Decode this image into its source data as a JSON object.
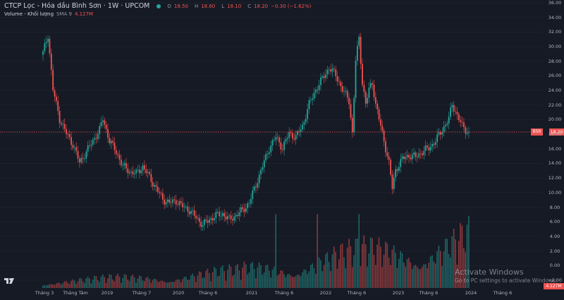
{
  "header": {
    "title": "CTCP Lọc - Hóa dầu Bình Sơn · 1W · UPCOM",
    "open_label": "O",
    "open": "18.50",
    "high_label": "H",
    "high": "18.60",
    "low_label": "L",
    "low": "18.10",
    "close_label": "C",
    "close": "18.20",
    "change": "−0.30 (−1.62%)"
  },
  "volume_legend": {
    "name": "Volume - Khối lượng",
    "sma": "SMA 9",
    "value": "4.127M"
  },
  "price_tag": {
    "symbol": "BSR",
    "price": "18.20"
  },
  "volume_tag": "4.127M",
  "watermark": {
    "line1": "Activate Windows",
    "line2": "Go to PC settings to activate Windows."
  },
  "colors": {
    "up": "#26a69a",
    "down": "#ef5350",
    "background": "#161a25",
    "grid": "#232632"
  },
  "chart_data": {
    "type": "candlestick",
    "y_ticks": [
      "36.00",
      "34.00",
      "32.00",
      "30.00",
      "28.00",
      "26.00",
      "24.00",
      "22.00",
      "20.00",
      "18.00",
      "16.00",
      "14.00",
      "12.00",
      "10.00",
      "8.00",
      "6.00",
      "4.00",
      "2.00",
      "0.00",
      "−2.00"
    ],
    "x_ticks": [
      "Tháng 3",
      "Tháng Tám",
      "2019",
      "Tháng 7",
      "2020",
      "Tháng 6",
      "2021",
      "Tháng 6",
      "2022",
      "Tháng 6",
      "2023",
      "Tháng 6",
      "2024",
      "Tháng 6"
    ],
    "price_anchors": [
      [
        0,
        29
      ],
      [
        3,
        31.5
      ],
      [
        6,
        24
      ],
      [
        10,
        20
      ],
      [
        14,
        18
      ],
      [
        18,
        16.5
      ],
      [
        22,
        14
      ],
      [
        26,
        15.5
      ],
      [
        30,
        17
      ],
      [
        34,
        18.5
      ],
      [
        36,
        20
      ],
      [
        40,
        17
      ],
      [
        44,
        15.5
      ],
      [
        48,
        13.5
      ],
      [
        52,
        12.8
      ],
      [
        56,
        12.5
      ],
      [
        60,
        13.5
      ],
      [
        64,
        12
      ],
      [
        68,
        10.5
      ],
      [
        72,
        9
      ],
      [
        76,
        8.5
      ],
      [
        80,
        8.8
      ],
      [
        84,
        8
      ],
      [
        88,
        7.5
      ],
      [
        92,
        6.5
      ],
      [
        96,
        5.5
      ],
      [
        100,
        6.2
      ],
      [
        104,
        6.8
      ],
      [
        108,
        7
      ],
      [
        112,
        6.2
      ],
      [
        116,
        6.8
      ],
      [
        120,
        7.5
      ],
      [
        124,
        8.5
      ],
      [
        128,
        11
      ],
      [
        132,
        13.5
      ],
      [
        136,
        16
      ],
      [
        140,
        17.5
      ],
      [
        144,
        16
      ],
      [
        148,
        18
      ],
      [
        152,
        17.5
      ],
      [
        156,
        19
      ],
      [
        160,
        22
      ],
      [
        164,
        24
      ],
      [
        168,
        25.5
      ],
      [
        172,
        27
      ],
      [
        176,
        26
      ],
      [
        180,
        24
      ],
      [
        184,
        22.5
      ],
      [
        186,
        18
      ],
      [
        188,
        28
      ],
      [
        190,
        31
      ],
      [
        192,
        25
      ],
      [
        194,
        22
      ],
      [
        196,
        24
      ],
      [
        198,
        25
      ],
      [
        200,
        22
      ],
      [
        204,
        18
      ],
      [
        208,
        14
      ],
      [
        210,
        10.5
      ],
      [
        212,
        13
      ],
      [
        216,
        14.5
      ],
      [
        220,
        15
      ],
      [
        224,
        14.8
      ],
      [
        228,
        15.5
      ],
      [
        232,
        16
      ],
      [
        236,
        17
      ],
      [
        240,
        18.5
      ],
      [
        244,
        20
      ],
      [
        246,
        22
      ],
      [
        248,
        21
      ],
      [
        252,
        19
      ],
      [
        254,
        18.5
      ],
      [
        256,
        18.2
      ]
    ],
    "candle_count": 257,
    "last_close": 18.2,
    "volume_max_millions": 7
  }
}
